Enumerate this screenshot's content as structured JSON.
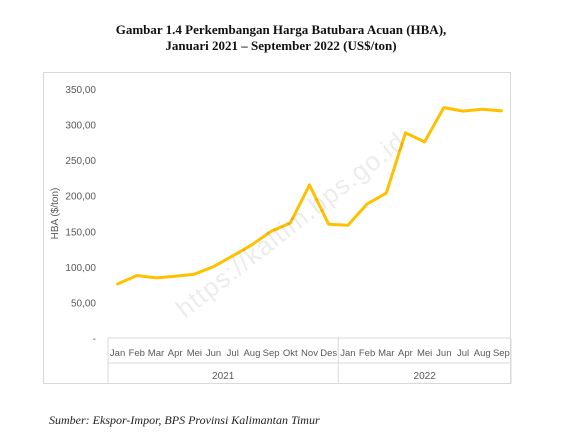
{
  "page": {
    "title_line1": "Gambar 1.4 Perkembangan Harga Batubara Acuan (HBA),",
    "title_line2": "Januari 2021 – September 2022 (US$/ton)",
    "source": "Sumber: Ekspor-Impor, BPS Provinsi Kalimantan Timur",
    "watermark": "https://kaltim.bps.go.id"
  },
  "chart_data": {
    "type": "line",
    "title": "Gambar 1.4 Perkembangan Harga Batubara Acuan (HBA), Januari 2021 – September 2022 (US$/ton)",
    "ylabel": "HBA ($/ton)",
    "xlabel": "",
    "ylim": [
      0,
      350
    ],
    "yticks": [
      0,
      50,
      100,
      150,
      200,
      250,
      300,
      350
    ],
    "ytick_labels": [
      "-",
      "50,00",
      "100,00",
      "150,00",
      "200,00",
      "250,00",
      "300,00",
      "350,00"
    ],
    "grid": false,
    "line_color": "#FFC000",
    "categories": [
      "Jan",
      "Feb",
      "Mar",
      "Apr",
      "Mei",
      "Jun",
      "Jul",
      "Aug",
      "Sep",
      "Okt",
      "Nov",
      "Des",
      "Jan",
      "Feb",
      "Mar",
      "Apr",
      "Mei",
      "Jun",
      "Jul",
      "Aug",
      "Sep"
    ],
    "year_groups": [
      {
        "label": "2021",
        "start": 0,
        "end": 11
      },
      {
        "label": "2022",
        "start": 12,
        "end": 20
      }
    ],
    "series": [
      {
        "values": [
          75.84,
          87.79,
          84.48,
          86.68,
          89.74,
          100.33,
          115.35,
          130.99,
          150.03,
          161.63,
          215.01,
          159.79,
          158.5,
          188.38,
          203.69,
          288.4,
          275.64,
          323.91,
          319.0,
          321.59,
          319.22
        ]
      }
    ]
  }
}
